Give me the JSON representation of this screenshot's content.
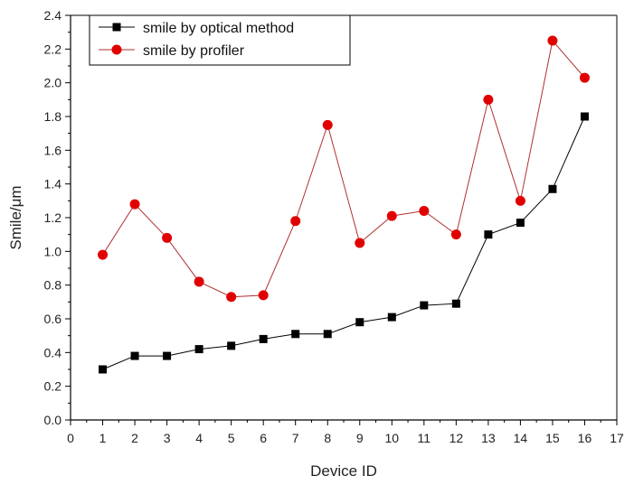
{
  "chart_data": {
    "type": "line",
    "title": "",
    "xlabel": "Device ID",
    "ylabel": "Smile/μm",
    "xlim": [
      0,
      17
    ],
    "ylim": [
      0.0,
      2.4
    ],
    "x_ticks": [
      "0",
      "1",
      "2",
      "3",
      "4",
      "5",
      "6",
      "7",
      "8",
      "9",
      "10",
      "11",
      "12",
      "13",
      "14",
      "15",
      "16",
      "17"
    ],
    "y_ticks": [
      "0.0",
      "0.2",
      "0.4",
      "0.6",
      "0.8",
      "1.0",
      "1.2",
      "1.4",
      "1.6",
      "1.8",
      "2.0",
      "2.2",
      "2.4"
    ],
    "grid": false,
    "legend_position": "top-left",
    "x": [
      1,
      2,
      3,
      4,
      5,
      6,
      7,
      8,
      9,
      10,
      11,
      12,
      13,
      14,
      15,
      16
    ],
    "series": [
      {
        "name": "smile by optical method",
        "marker": "square",
        "color": "#000000",
        "values": [
          0.3,
          0.38,
          0.38,
          0.42,
          0.44,
          0.48,
          0.51,
          0.51,
          0.58,
          0.61,
          0.68,
          0.69,
          1.1,
          1.17,
          1.37,
          1.8
        ]
      },
      {
        "name": "smile by profiler",
        "marker": "circle",
        "color": "#e00000",
        "line_color": "#b03030",
        "values": [
          0.98,
          1.28,
          1.08,
          0.82,
          0.73,
          0.74,
          1.18,
          1.75,
          1.05,
          1.21,
          1.24,
          1.1,
          1.9,
          1.3,
          2.25,
          2.03
        ]
      }
    ]
  }
}
